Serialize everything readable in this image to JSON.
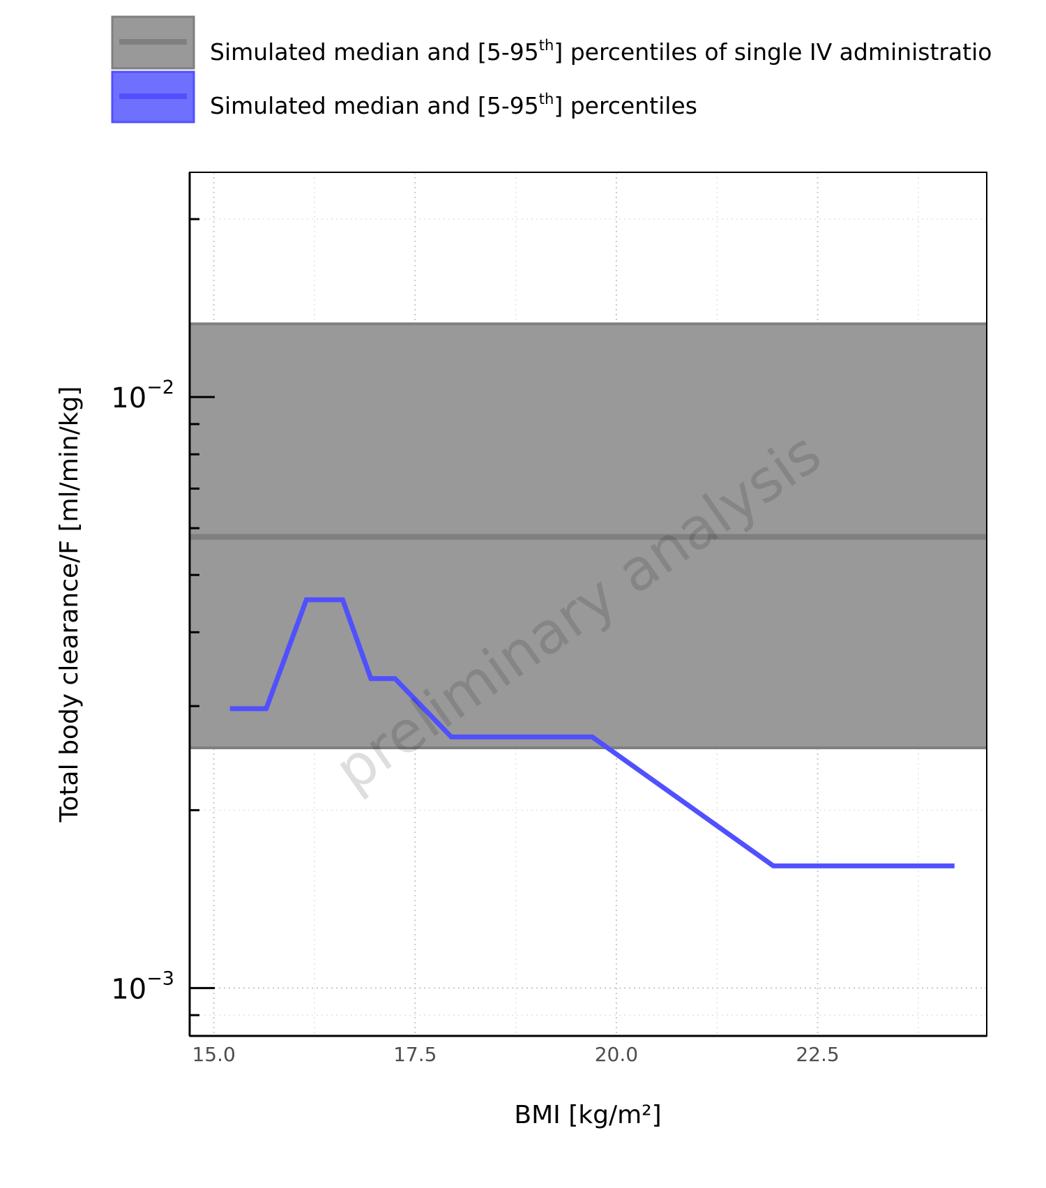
{
  "chart_data": {
    "type": "line",
    "xlabel": "BMI [kg/m²]",
    "ylabel": "Total body clearance/F [ml/min/kg]",
    "y_scale": "log",
    "xlim": [
      14.7,
      24.6
    ],
    "ylim": [
      0.00083,
      0.024
    ],
    "x_ticks": [
      15.0,
      17.5,
      20.0,
      22.5
    ],
    "x_tick_labels": [
      "15.0",
      "17.5",
      "20.0",
      "22.5"
    ],
    "y_major_ticks": [
      0.001,
      0.01
    ],
    "y_tick_labels": [
      {
        "base": "10",
        "exp": "−3"
      },
      {
        "base": "10",
        "exp": "−2"
      }
    ],
    "y_minor_ticks": [
      0.0009,
      0.002,
      0.003,
      0.004,
      0.005,
      0.006,
      0.007,
      0.008,
      0.009,
      0.02
    ],
    "grid": true,
    "legend_position": "top",
    "watermark": "preliminary analysis",
    "reference_band": {
      "legend_prefix": "Simulated median and [5-95",
      "legend_sup": "th",
      "legend_suffix": "] percentiles of single IV administratio",
      "median": 0.0058,
      "lower": 0.00255,
      "upper": 0.0133,
      "fill_color": "#999999",
      "line_color": "#7f7f7f"
    },
    "series": [
      {
        "legend_prefix": "Simulated median and [5-95",
        "legend_sup": "th",
        "legend_suffix": "] percentiles",
        "color": "#5050ff",
        "band_color": "#7070ff",
        "x": [
          15.2,
          15.65,
          16.15,
          16.6,
          16.95,
          17.25,
          17.95,
          19.7,
          21.95,
          24.2
        ],
        "y": [
          0.00297,
          0.00297,
          0.00454,
          0.00454,
          0.00334,
          0.00334,
          0.00266,
          0.00266,
          0.00161,
          0.00161
        ]
      }
    ]
  }
}
